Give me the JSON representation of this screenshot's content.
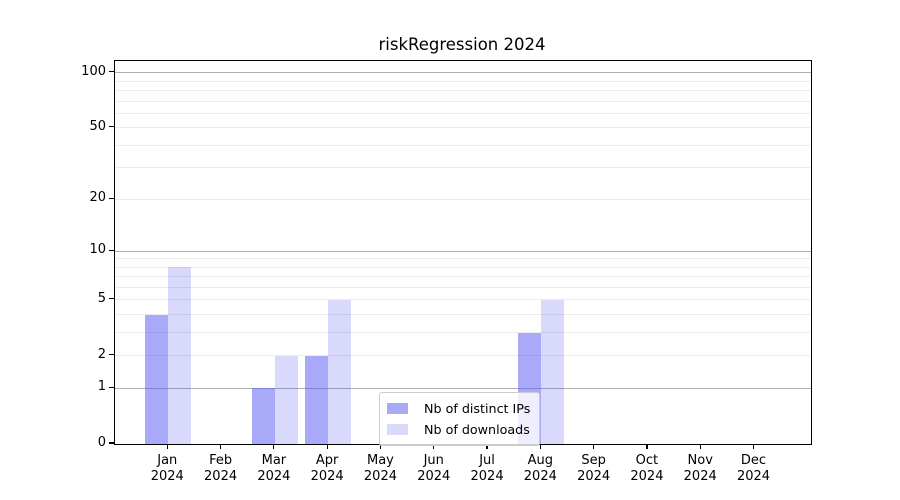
{
  "chart_data": {
    "type": "bar",
    "title": "riskRegression 2024",
    "categories": [
      "Jan",
      "Feb",
      "Mar",
      "Apr",
      "May",
      "Jun",
      "Jul",
      "Aug",
      "Sep",
      "Oct",
      "Nov",
      "Dec"
    ],
    "x_sublabel": "2024",
    "series": [
      {
        "name": "Nb of distinct IPs",
        "color": "#a9a9f6",
        "fill": "rgba(84,84,243,0.50)",
        "values": [
          4,
          0,
          1,
          2,
          0,
          0,
          0,
          3,
          0,
          0,
          0,
          0
        ]
      },
      {
        "name": "Nb of downloads",
        "color": "#d9d9f8",
        "fill": "rgba(84,84,243,0.22)",
        "values": [
          8,
          0,
          2,
          5,
          0,
          0,
          0,
          5,
          0,
          0,
          0,
          0
        ]
      }
    ],
    "yscale": "log1p",
    "ylim": [
      0,
      116
    ],
    "y_ticks": [
      0,
      1,
      2,
      5,
      10,
      20,
      50,
      100
    ],
    "y_major_gridlines": [
      1,
      10,
      100
    ],
    "y_minor_gridlines": [
      2,
      3,
      4,
      6,
      7,
      8,
      9,
      5,
      20,
      30,
      40,
      50,
      60,
      70,
      80,
      90
    ],
    "grid": true,
    "legend_position": "lower center",
    "colors": {
      "major_grid": "#b0b0b0",
      "minor_grid": "#ebebeb",
      "spine": "#000000",
      "legend_border": "#cccccc"
    }
  }
}
